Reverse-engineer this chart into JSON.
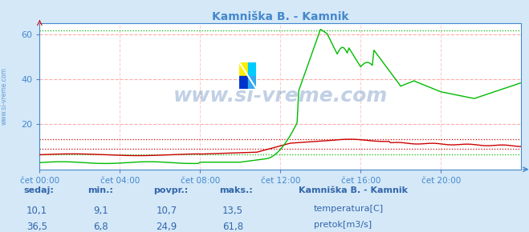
{
  "title": "Kamniška B. - Kamnik",
  "bg_color": "#d4e8f8",
  "plot_bg_color": "#ffffff",
  "x_labels": [
    "čet 00:00",
    "čet 04:00",
    "čet 08:00",
    "čet 12:00",
    "čet 16:00",
    "čet 20:00"
  ],
  "x_ticks": [
    0,
    48,
    96,
    144,
    192,
    240
  ],
  "x_max": 288,
  "y_min": 0,
  "y_max": 65,
  "y_ticks": [
    20,
    40,
    60
  ],
  "temp_color": "#cc0000",
  "flow_color": "#00bb00",
  "temp_max_line": 13.5,
  "temp_min_line": 9.1,
  "flow_max_line": 61.8,
  "flow_min_line": 6.8,
  "grid_color": "#ffaaaa",
  "vgrid_color": "#ffcccc",
  "axis_color": "#4488cc",
  "title_color": "#4488cc",
  "watermark": "www.si-vreme.com",
  "watermark_color": "#3366aa",
  "left_label": "www.si-vreme.com",
  "table_headers": [
    "sedaj:",
    "min.:",
    "povpr.:",
    "maks.:"
  ],
  "table_color": "#3366aa",
  "row1_values": [
    "10,1",
    "9,1",
    "10,7",
    "13,5"
  ],
  "row2_values": [
    "36,5",
    "6,8",
    "24,9",
    "61,8"
  ],
  "legend_title": "Kamniška B. - Kamnik",
  "legend_items": [
    "temperatura[C]",
    "pretok[m3/s]"
  ],
  "legend_colors": [
    "#cc0000",
    "#00bb00"
  ],
  "icon_colors": [
    "#ffee00",
    "#00aaff",
    "#0033cc",
    "#33aaff"
  ]
}
